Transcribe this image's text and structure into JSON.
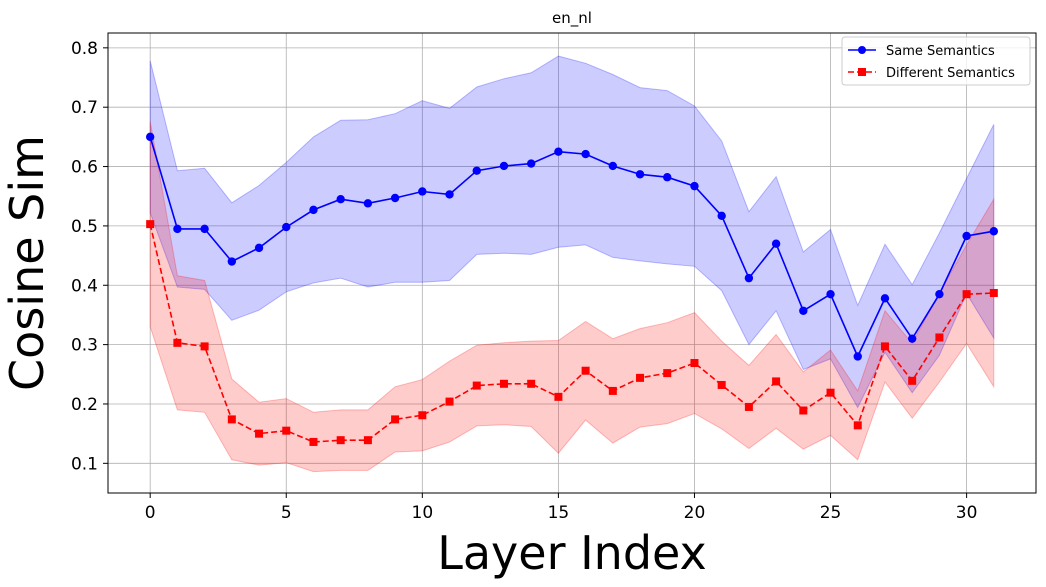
{
  "chart_data": {
    "type": "line",
    "title": "en_nl",
    "xlabel": "Layer Index",
    "ylabel": "Cosine Sim",
    "xlim": [
      -1.55,
      32.55
    ],
    "ylim": [
      0.05,
      0.825
    ],
    "xticks": [
      0,
      5,
      10,
      15,
      20,
      25,
      30
    ],
    "yticks": [
      0.1,
      0.2,
      0.3,
      0.4,
      0.5,
      0.6,
      0.7,
      0.8
    ],
    "grid": true,
    "legend_position": "top-right",
    "x": [
      0,
      1,
      2,
      3,
      4,
      5,
      6,
      7,
      8,
      9,
      10,
      11,
      12,
      13,
      14,
      15,
      16,
      17,
      18,
      19,
      20,
      21,
      22,
      23,
      24,
      25,
      26,
      27,
      28,
      29,
      30,
      31
    ],
    "series": [
      {
        "name": "Same Semantics",
        "color": "#0000ff",
        "marker": "circle",
        "line_style": "solid",
        "values": [
          0.65,
          0.495,
          0.495,
          0.44,
          0.463,
          0.498,
          0.527,
          0.545,
          0.538,
          0.547,
          0.558,
          0.553,
          0.593,
          0.601,
          0.605,
          0.625,
          0.621,
          0.601,
          0.587,
          0.582,
          0.567,
          0.517,
          0.412,
          0.47,
          0.357,
          0.385,
          0.28,
          0.378,
          0.31,
          0.385,
          0.483,
          0.491
        ],
        "upper": [
          0.778,
          0.593,
          0.597,
          0.539,
          0.568,
          0.607,
          0.65,
          0.678,
          0.679,
          0.689,
          0.711,
          0.698,
          0.734,
          0.748,
          0.758,
          0.786,
          0.774,
          0.755,
          0.733,
          0.728,
          0.702,
          0.643,
          0.524,
          0.583,
          0.456,
          0.494,
          0.366,
          0.469,
          0.401,
          0.488,
          0.58,
          0.671
        ],
        "lower": [
          0.522,
          0.397,
          0.393,
          0.341,
          0.358,
          0.389,
          0.404,
          0.412,
          0.397,
          0.405,
          0.405,
          0.408,
          0.452,
          0.454,
          0.452,
          0.464,
          0.468,
          0.447,
          0.441,
          0.436,
          0.432,
          0.391,
          0.3,
          0.357,
          0.258,
          0.276,
          0.194,
          0.287,
          0.219,
          0.282,
          0.386,
          0.311
        ]
      },
      {
        "name": "Different Semantics",
        "color": "#ff0000",
        "marker": "square",
        "line_style": "dashed",
        "values": [
          0.503,
          0.303,
          0.297,
          0.174,
          0.15,
          0.155,
          0.136,
          0.139,
          0.139,
          0.174,
          0.181,
          0.204,
          0.231,
          0.234,
          0.234,
          0.212,
          0.256,
          0.222,
          0.244,
          0.252,
          0.269,
          0.232,
          0.195,
          0.238,
          0.189,
          0.219,
          0.164,
          0.297,
          0.239,
          0.312,
          0.385,
          0.387
        ],
        "upper": [
          0.676,
          0.416,
          0.408,
          0.242,
          0.203,
          0.209,
          0.186,
          0.19,
          0.19,
          0.229,
          0.241,
          0.272,
          0.299,
          0.303,
          0.306,
          0.307,
          0.339,
          0.31,
          0.327,
          0.337,
          0.354,
          0.306,
          0.265,
          0.317,
          0.254,
          0.291,
          0.222,
          0.357,
          0.302,
          0.387,
          0.468,
          0.545
        ],
        "lower": [
          0.33,
          0.19,
          0.186,
          0.106,
          0.097,
          0.101,
          0.086,
          0.088,
          0.088,
          0.119,
          0.121,
          0.136,
          0.163,
          0.165,
          0.162,
          0.117,
          0.173,
          0.134,
          0.161,
          0.167,
          0.184,
          0.158,
          0.125,
          0.159,
          0.124,
          0.147,
          0.106,
          0.237,
          0.176,
          0.237,
          0.302,
          0.229
        ]
      }
    ]
  }
}
